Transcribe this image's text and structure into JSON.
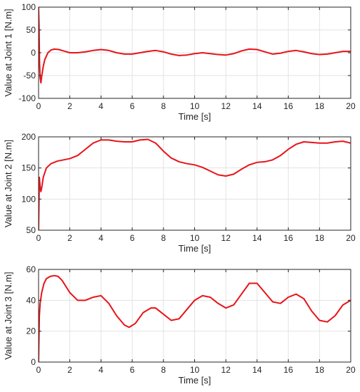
{
  "figure": {
    "background": "#ffffff",
    "line_color": "#e8141a",
    "grid_color": "#e3e3e3",
    "axis_color": "#262626"
  },
  "chart_data": [
    {
      "type": "line",
      "title": "",
      "xlabel": "Time [s]",
      "ylabel": "Value at Joint 1 [N.m]",
      "xlim": [
        0,
        20
      ],
      "ylim": [
        -100,
        100
      ],
      "xticks": [
        0,
        2,
        4,
        6,
        8,
        10,
        12,
        14,
        16,
        18,
        20
      ],
      "yticks": [
        -100,
        -50,
        0,
        50,
        100
      ],
      "grid": true,
      "series": [
        {
          "x": [
            0,
            0.03,
            0.06,
            0.1,
            0.15,
            0.2,
            0.3,
            0.4,
            0.6,
            0.8,
            1.0,
            1.3,
            1.6,
            2.0,
            2.5,
            3.0,
            3.5,
            4.0,
            4.5,
            5.0,
            5.5,
            6.0,
            6.5,
            7.0,
            7.5,
            8.0,
            8.5,
            9.0,
            9.5,
            10.0,
            10.5,
            11.0,
            11.5,
            12.0,
            12.5,
            13.0,
            13.5,
            14.0,
            14.5,
            15.0,
            15.5,
            16.0,
            16.5,
            17.0,
            17.5,
            18.0,
            18.5,
            19.0,
            19.5,
            20.0
          ],
          "y": [
            100,
            60,
            -20,
            -55,
            -66,
            -52,
            -30,
            -15,
            0,
            6,
            8,
            7,
            4,
            0,
            0,
            2,
            5,
            7,
            5,
            0,
            -3,
            -3,
            0,
            3,
            5,
            2,
            -3,
            -6,
            -5,
            -2,
            0,
            -2,
            -4,
            -5,
            -2,
            4,
            8,
            7,
            2,
            -3,
            -1,
            3,
            5,
            2,
            -2,
            -4,
            -3,
            0,
            3,
            3
          ]
        }
      ]
    },
    {
      "type": "line",
      "title": "",
      "xlabel": "Time [s]",
      "ylabel": "Value at Joint 2 [N.m]",
      "xlim": [
        0,
        20
      ],
      "ylim": [
        50,
        200
      ],
      "xticks": [
        0,
        2,
        4,
        6,
        8,
        10,
        12,
        14,
        16,
        18,
        20
      ],
      "yticks": [
        50,
        100,
        150,
        200
      ],
      "grid": true,
      "series": [
        {
          "x": [
            0,
            0.05,
            0.1,
            0.15,
            0.2,
            0.3,
            0.5,
            0.8,
            1.2,
            2.0,
            2.5,
            3.0,
            3.5,
            4.0,
            4.5,
            5.0,
            5.5,
            6.0,
            6.5,
            7.0,
            7.5,
            8.0,
            8.5,
            9.0,
            9.5,
            10.0,
            10.5,
            11.0,
            11.5,
            12.0,
            12.5,
            13.0,
            13.5,
            14.0,
            14.5,
            15.0,
            15.5,
            16.0,
            16.5,
            17.0,
            17.5,
            18.0,
            18.5,
            19.0,
            19.5,
            20.0
          ],
          "y": [
            50,
            135,
            120,
            112,
            118,
            135,
            150,
            157,
            161,
            165,
            170,
            180,
            190,
            195,
            195,
            193,
            192,
            192,
            195,
            196,
            190,
            177,
            166,
            160,
            157,
            155,
            151,
            145,
            139,
            137,
            140,
            148,
            155,
            159,
            160,
            163,
            170,
            180,
            188,
            192,
            191,
            190,
            190,
            192,
            193,
            190
          ]
        }
      ]
    },
    {
      "type": "line",
      "title": "",
      "xlabel": "Time [s]",
      "ylabel": "Value at Joint 3 [N.m]",
      "xlim": [
        0,
        20
      ],
      "ylim": [
        0,
        60
      ],
      "xticks": [
        0,
        2,
        4,
        6,
        8,
        10,
        12,
        14,
        16,
        18,
        20
      ],
      "yticks": [
        0,
        20,
        40,
        60
      ],
      "grid": true,
      "series": [
        {
          "x": [
            0,
            0.05,
            0.1,
            0.2,
            0.35,
            0.5,
            0.75,
            1.0,
            1.25,
            1.5,
            2.0,
            2.5,
            3.0,
            3.5,
            4.0,
            4.5,
            5.0,
            5.5,
            5.8,
            6.2,
            6.7,
            7.2,
            7.5,
            8.0,
            8.5,
            9.0,
            9.5,
            10.0,
            10.5,
            11.0,
            11.5,
            12.0,
            12.5,
            13.0,
            13.5,
            14.0,
            14.5,
            15.0,
            15.5,
            16.0,
            16.5,
            17.0,
            17.5,
            18.0,
            18.5,
            19.0,
            19.5,
            20.0
          ],
          "y": [
            0,
            30,
            38,
            45,
            51,
            54,
            55.5,
            56,
            55.5,
            53,
            45,
            40,
            40,
            42,
            43,
            38,
            30,
            24,
            22.5,
            25,
            32,
            35,
            35,
            31,
            27,
            28,
            34,
            40,
            43,
            42,
            38,
            35,
            37,
            44,
            51,
            51,
            45,
            39,
            38,
            42,
            44,
            41,
            33,
            27,
            26,
            30,
            37,
            40
          ]
        }
      ]
    }
  ]
}
